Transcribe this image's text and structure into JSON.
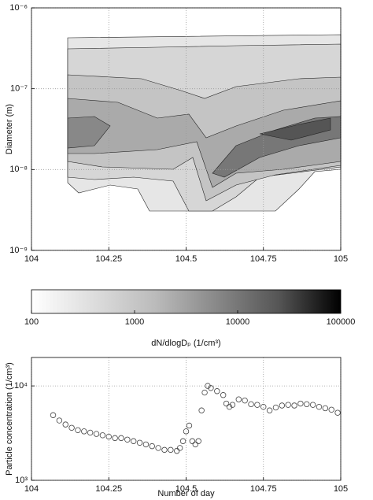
{
  "chart_data": [
    {
      "type": "contour",
      "ylabel": "Diameter (m)",
      "xlim": [
        104,
        105
      ],
      "xticks": [
        104,
        104.25,
        104.5,
        104.75,
        105
      ],
      "ylim": [
        1e-09,
        1e-06
      ],
      "log_y": true,
      "grid": true,
      "yticks": [
        {
          "value": 1e-09,
          "label": "10⁻⁹"
        },
        {
          "value": 1e-08,
          "label": "10⁻⁸"
        },
        {
          "value": 1e-07,
          "label": "10⁻⁷"
        },
        {
          "value": 1e-06,
          "label": "10⁻⁶"
        }
      ]
    },
    {
      "type": "colorbar",
      "xlabel": "dN/dlogDₚ (1/cm³)",
      "xlim": [
        100,
        100000
      ],
      "log_x": true,
      "xticks": [
        100,
        1000,
        10000,
        100000
      ]
    },
    {
      "type": "scatter",
      "ylabel": "Particle concentration (1/cm³)",
      "xlabel": "Number of day",
      "xlim": [
        104,
        105
      ],
      "xticks": [
        104,
        104.25,
        104.5,
        104.75,
        105
      ],
      "ylim": [
        1000,
        20000
      ],
      "log_y": true,
      "grid": true,
      "color": "#444",
      "yticks": [
        {
          "value": 1000,
          "label": "10³"
        },
        {
          "value": 10000,
          "label": "10⁴"
        }
      ],
      "x": [
        104.07,
        104.09,
        104.11,
        104.13,
        104.15,
        104.17,
        104.19,
        104.21,
        104.23,
        104.25,
        104.27,
        104.29,
        104.31,
        104.33,
        104.35,
        104.37,
        104.39,
        104.41,
        104.43,
        104.45,
        104.47,
        104.48,
        104.49,
        104.5,
        104.51,
        104.52,
        104.53,
        104.54,
        104.55,
        104.56,
        104.57,
        104.58,
        104.6,
        104.62,
        104.63,
        104.64,
        104.65,
        104.67,
        104.69,
        104.71,
        104.73,
        104.75,
        104.77,
        104.79,
        104.81,
        104.83,
        104.85,
        104.87,
        104.89,
        104.91,
        104.93,
        104.95,
        104.97,
        104.99
      ],
      "values": [
        4900,
        4300,
        3900,
        3600,
        3400,
        3300,
        3200,
        3100,
        3000,
        2900,
        2800,
        2800,
        2700,
        2600,
        2500,
        2400,
        2300,
        2200,
        2100,
        2100,
        2050,
        2200,
        2600,
        3300,
        3800,
        2600,
        2400,
        2600,
        5500,
        8500,
        10000,
        9500,
        8800,
        8000,
        6500,
        6000,
        6300,
        7200,
        7000,
        6400,
        6300,
        6000,
        5500,
        5900,
        6200,
        6300,
        6200,
        6500,
        6400,
        6300,
        6000,
        5800,
        5600,
        5200
      ]
    }
  ]
}
